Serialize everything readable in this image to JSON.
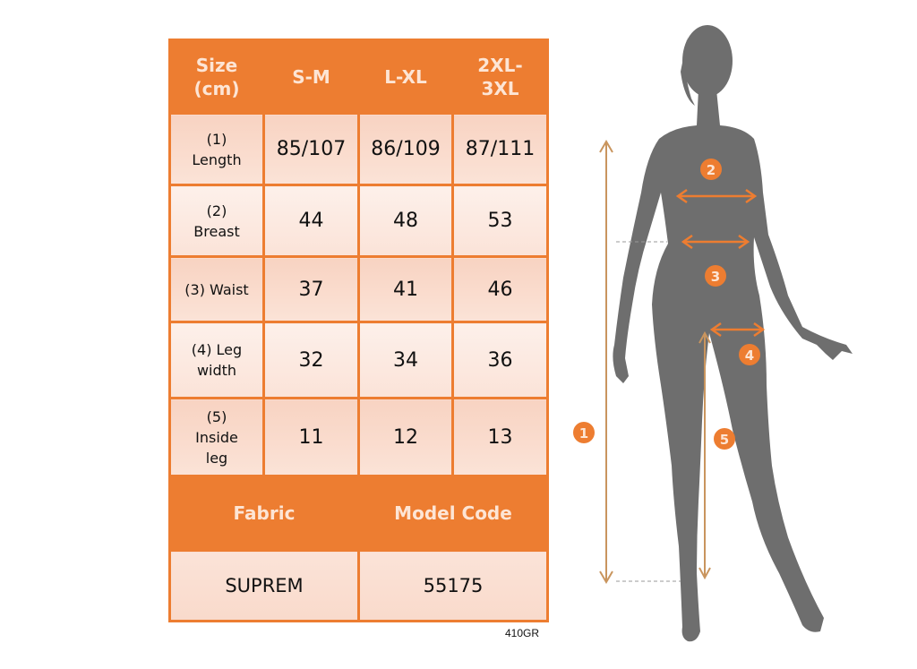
{
  "table": {
    "header": [
      "Size (cm)",
      "S-M",
      "L-XL",
      "2XL-3XL"
    ],
    "rows": [
      {
        "label": "(1) Length",
        "values": [
          "85/107",
          "86/109",
          "87/111"
        ]
      },
      {
        "label": "(2) Breast",
        "values": [
          "44",
          "48",
          "53"
        ]
      },
      {
        "label": "(3) Waist",
        "values": [
          "37",
          "41",
          "46"
        ]
      },
      {
        "label": "(4) Leg width",
        "values": [
          "32",
          "34",
          "36"
        ]
      },
      {
        "label": "(5) Inside leg",
        "values": [
          "11",
          "12",
          "13"
        ]
      }
    ],
    "footer_header": [
      "Fabric",
      "Model Code"
    ],
    "footer_values": [
      "SUPREM",
      "55175"
    ]
  },
  "code": "410GR",
  "figure": {
    "markers": [
      "1",
      "2",
      "3",
      "4",
      "5"
    ]
  },
  "colors": {
    "accent": "#ed7d31",
    "silhouette": "#6e6e6e",
    "arrow": "#c9955e"
  }
}
